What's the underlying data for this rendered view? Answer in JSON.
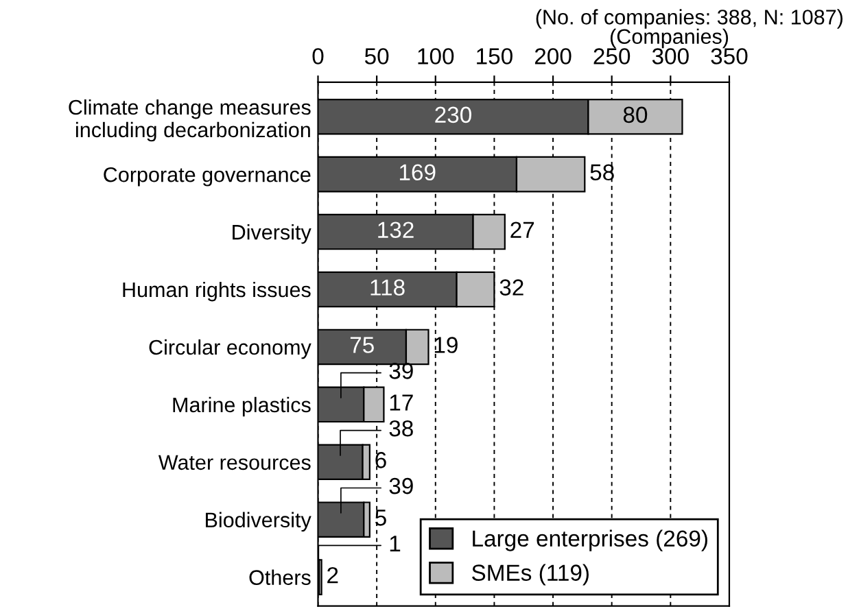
{
  "chart_data": {
    "type": "bar",
    "orientation": "horizontal",
    "stacked": true,
    "subtitle": "(No. of companies: 388, N: 1087)",
    "xlabel": "(Companies)",
    "categories": [
      "Climate change measures\nincluding decarbonization",
      "Corporate governance",
      "Diversity",
      "Human rights issues",
      "Circular economy",
      "Marine plastics",
      "Water resources",
      "Biodiversity",
      "Others"
    ],
    "series": [
      {
        "name": "Large enterprises (269)",
        "color": "#555555",
        "values": [
          230,
          169,
          132,
          118,
          75,
          39,
          38,
          39,
          1
        ]
      },
      {
        "name": "SMEs (119)",
        "color": "#bbbbbb",
        "values": [
          80,
          58,
          27,
          32,
          19,
          17,
          6,
          5,
          2
        ]
      }
    ],
    "xlim": [
      0,
      350
    ],
    "xticks": [
      0,
      50,
      100,
      150,
      200,
      250,
      300,
      350
    ],
    "grid": "x",
    "legend": "bottom right",
    "data_labels": true
  }
}
